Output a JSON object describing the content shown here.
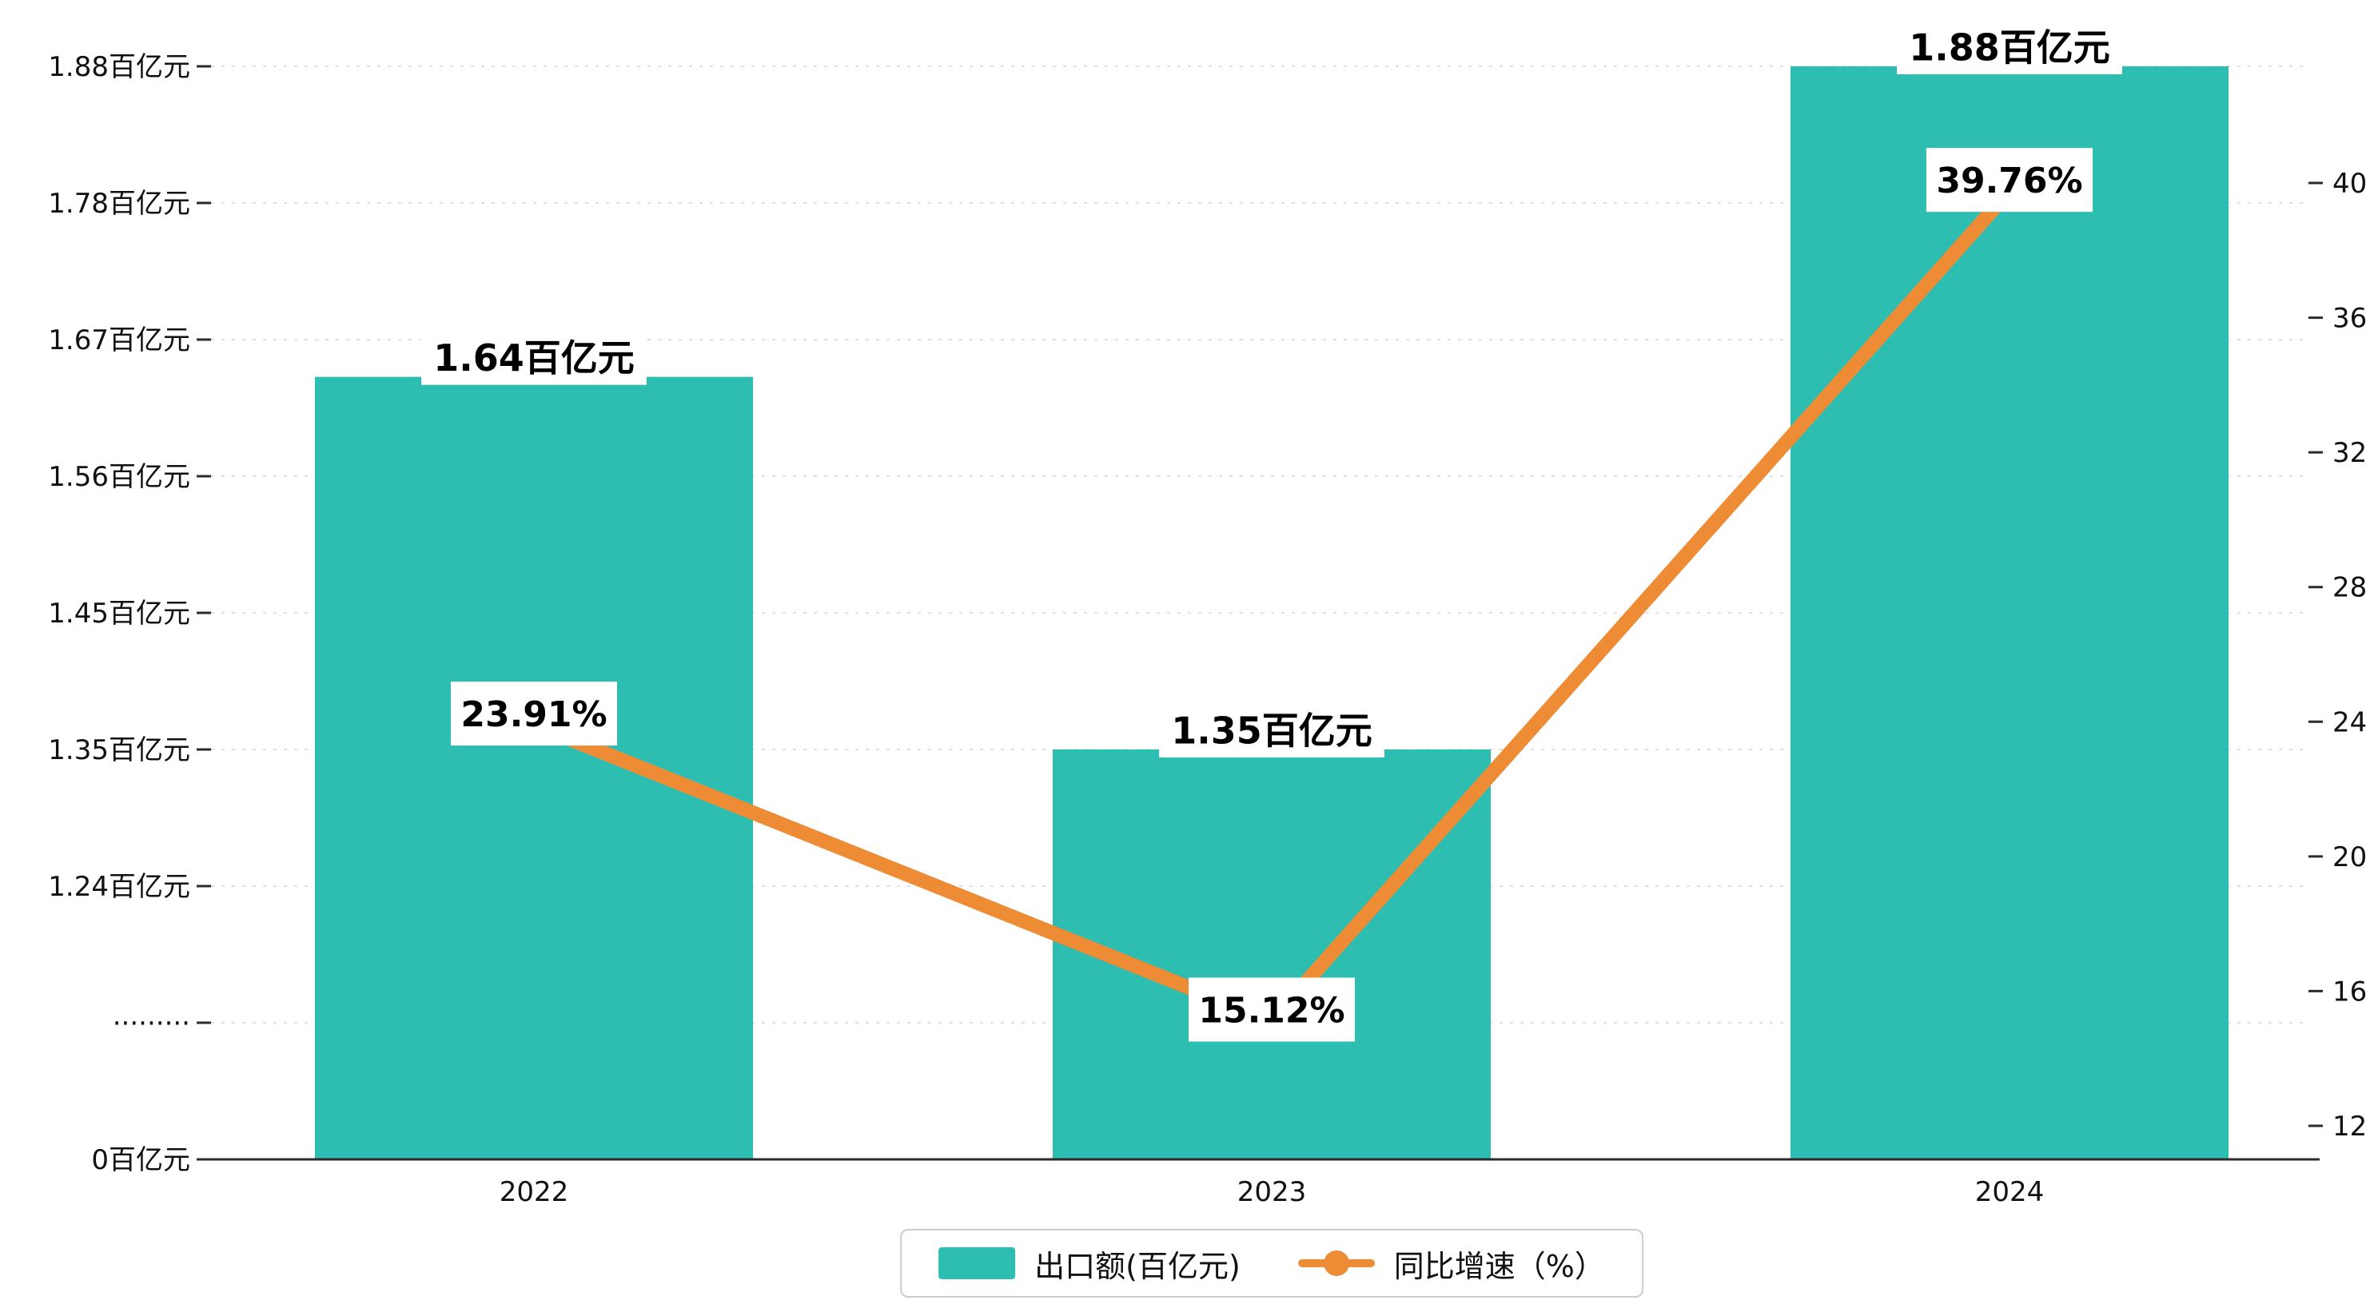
{
  "chart_data": {
    "type": "bar+line",
    "dual_axis": true,
    "categories": [
      "2022",
      "2023",
      "2024"
    ],
    "series": [
      {
        "name": "出口额(百亿元)",
        "type": "bar",
        "axis": "left",
        "color": "#2EBDB1",
        "values": [
          1.64,
          1.35,
          1.88
        ],
        "point_labels": [
          "1.64百亿元",
          "1.35百亿元",
          "1.88百亿元"
        ]
      },
      {
        "name": "同比增速（%）",
        "type": "line",
        "axis": "right",
        "color": "#ED8C35",
        "values": [
          23.91,
          15.12,
          39.76
        ],
        "point_labels": [
          "23.91%",
          "15.12%",
          "39.76%"
        ]
      }
    ],
    "left_axis": {
      "tick_labels": [
        "0百亿元",
        "·········",
        "1.24百亿元",
        "1.35百亿元",
        "1.45百亿元",
        "1.56百亿元",
        "1.67百亿元",
        "1.78百亿元",
        "1.88百亿元"
      ],
      "tick_values": [
        0,
        null,
        1.24,
        1.35,
        1.45,
        1.56,
        1.67,
        1.78,
        1.88
      ],
      "axis_break": true
    },
    "right_axis": {
      "tick_labels": [
        "12",
        "16",
        "20",
        "24",
        "28",
        "32",
        "36",
        "40"
      ],
      "min": 12,
      "max": 40
    },
    "x_axis": {
      "tick_labels": [
        "2022",
        "2023",
        "2024"
      ]
    },
    "grid": {
      "show": true,
      "style": "dashed"
    },
    "legend": {
      "position": "bottom-center",
      "items": [
        {
          "label": "出口额(百亿元)",
          "marker": "rect",
          "color": "#2EBDB1"
        },
        {
          "label": "同比增速（%）",
          "marker": "line-dot",
          "color": "#ED8C35"
        }
      ]
    }
  },
  "colors": {
    "bar": "#2EBDB1",
    "line": "#ED8C35",
    "grid_line": "#DFDFDF",
    "axis_line": "#2B2B2B",
    "tick_text": "#111111",
    "label_bg": "#FFFFFF",
    "label_text": "#000000",
    "legend_border": "#CCCCCC"
  }
}
